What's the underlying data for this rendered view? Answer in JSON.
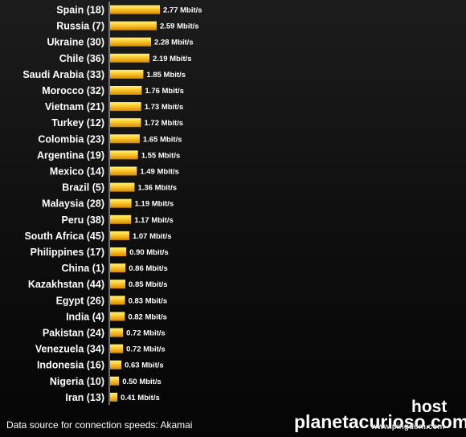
{
  "chart_data": {
    "type": "bar",
    "orientation": "horizontal",
    "categories": [
      "Spain (18)",
      "Russia (7)",
      "Ukraine (30)",
      "Chile (36)",
      "Saudi Arabia (33)",
      "Morocco (32)",
      "Vietnam (21)",
      "Turkey (12)",
      "Colombia (23)",
      "Argentina (19)",
      "Mexico (14)",
      "Brazil (5)",
      "Malaysia (28)",
      "Peru (38)",
      "South Africa (45)",
      "Philippines (17)",
      "China (1)",
      "Kazakhstan (44)",
      "Egypt (26)",
      "India (4)",
      "Pakistan (24)",
      "Venezuela (34)",
      "Indonesia (16)",
      "Nigeria (10)",
      "Iran (13)"
    ],
    "values": [
      2.77,
      2.59,
      2.28,
      2.19,
      1.85,
      1.76,
      1.73,
      1.72,
      1.65,
      1.55,
      1.49,
      1.36,
      1.19,
      1.17,
      1.07,
      0.9,
      0.86,
      0.85,
      0.83,
      0.82,
      0.72,
      0.72,
      0.63,
      0.5,
      0.41
    ],
    "value_labels": [
      "2.77 Mbit/s",
      "2.59 Mbit/s",
      "2.28 Mbit/s",
      "2.19 Mbit/s",
      "1.85 Mbit/s",
      "1.76 Mbit/s",
      "1.73 Mbit/s",
      "1.72 Mbit/s",
      "1.65 Mbit/s",
      "1.55 Mbit/s",
      "1.49 Mbit/s",
      "1.36 Mbit/s",
      "1.19 Mbit/s",
      "1.17 Mbit/s",
      "1.07 Mbit/s",
      "0.90 Mbit/s",
      "0.86 Mbit/s",
      "0.85 Mbit/s",
      "0.83 Mbit/s",
      "0.82 Mbit/s",
      "0.72 Mbit/s",
      "0.72 Mbit/s",
      "0.63 Mbit/s",
      "0.50 Mbit/s",
      "0.41 Mbit/s"
    ],
    "unit": "Mbit/s",
    "xlim": [
      0,
      2.77
    ],
    "grid": false,
    "legend": "none",
    "colors": {
      "bar_light": "#ffd23a",
      "bar_dark": "#d98a00",
      "background": "#141414",
      "text": "#ffffff"
    }
  },
  "footer": {
    "source": "Data source for connection speeds: Akamai"
  },
  "watermark": {
    "host": "host",
    "site": "planetacurioso.com",
    "sub": "www.pingdom.com"
  }
}
